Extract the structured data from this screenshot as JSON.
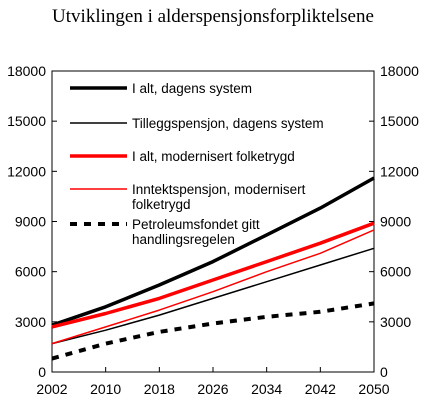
{
  "chart_data": {
    "type": "line",
    "title": "Utviklingen i alderspensjonsforpliktelsene",
    "xlabel": "",
    "ylabel": "",
    "x_ticks": [
      "2002",
      "2010",
      "2018",
      "2026",
      "2034",
      "2042",
      "2050"
    ],
    "y_ticks": [
      "0",
      "3000",
      "6000",
      "9000",
      "12000",
      "15000",
      "18000"
    ],
    "xlim": [
      2002,
      2050
    ],
    "ylim": [
      0,
      18000
    ],
    "grid": false,
    "legend_position": "top-left, inside plot",
    "x": [
      2002,
      2010,
      2018,
      2026,
      2034,
      2042,
      2050
    ],
    "series": [
      {
        "name": "I alt, dagens system",
        "color": "#000000",
        "style": "solid-thick",
        "values": [
          2800,
          3900,
          5200,
          6600,
          8200,
          9800,
          11600
        ]
      },
      {
        "name": "Tilleggspensjon, dagens system",
        "color": "#000000",
        "style": "solid-thin",
        "values": [
          1700,
          2500,
          3400,
          4400,
          5400,
          6400,
          7400
        ]
      },
      {
        "name": "I alt, modernisert  folketrygd",
        "color": "#ff0000",
        "style": "solid-thick",
        "values": [
          2700,
          3500,
          4400,
          5500,
          6600,
          7700,
          8900
        ]
      },
      {
        "name": "Inntektspensjon, modernisert folketrygd",
        "color": "#ff0000",
        "style": "solid-thin",
        "values": [
          1700,
          2700,
          3700,
          4800,
          6000,
          7100,
          8500
        ]
      },
      {
        "name": "Petroleumsfondet gitt handlingsregelen",
        "color": "#000000",
        "style": "dashed-thick",
        "values": [
          800,
          1700,
          2400,
          2900,
          3300,
          3600,
          4100
        ]
      }
    ],
    "legend_labels": [
      [
        "I alt, dagens system"
      ],
      [
        "Tilleggspensjon, dagens system"
      ],
      [
        "I alt, modernisert  folketrygd"
      ],
      [
        "Inntektspensjon, modernisert",
        "folketrygd"
      ],
      [
        "Petroleumsfondet gitt",
        "handlingsregelen"
      ]
    ]
  }
}
